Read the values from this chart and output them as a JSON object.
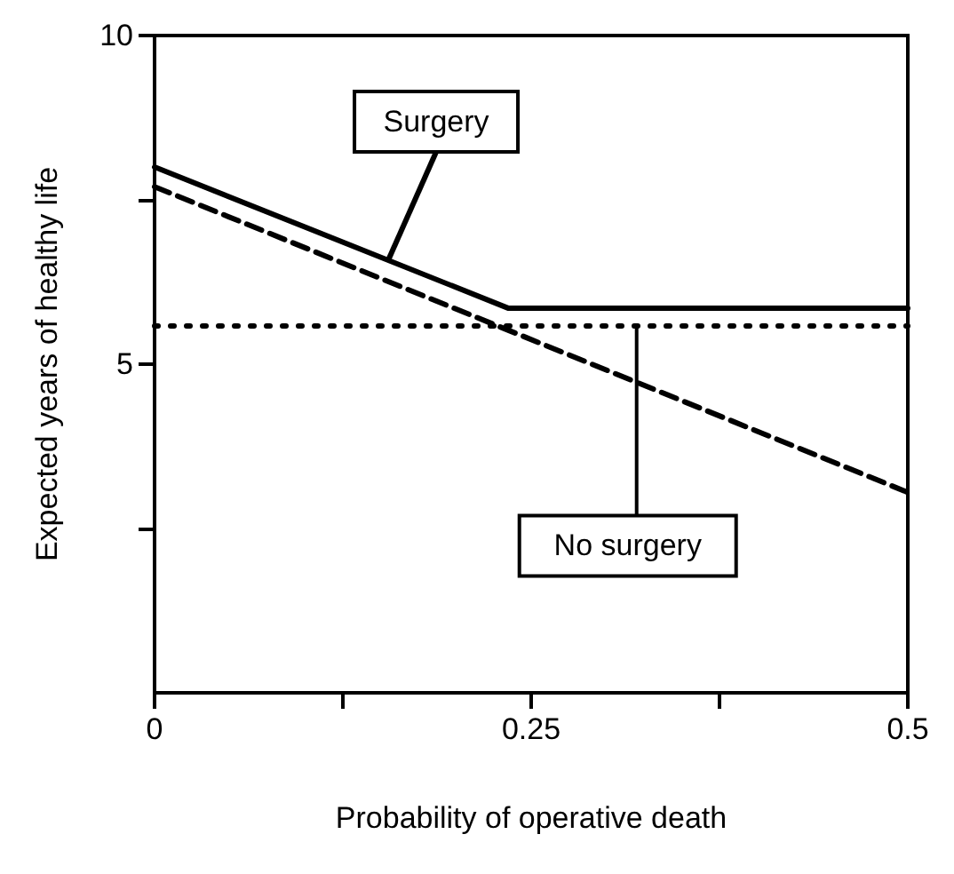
{
  "chart_data": {
    "type": "line",
    "xlabel": "Probability of operative death",
    "ylabel": "Expected years of healthy life",
    "xlim": [
      0,
      0.5
    ],
    "xticks": [
      0,
      {
        "value": 0.125,
        "label": null
      },
      0.25,
      {
        "value": 0.375,
        "label": null
      },
      0.5
    ],
    "ylim": [
      0,
      10
    ],
    "yticks": [
      {
        "value": 2.5,
        "label": null
      },
      5,
      {
        "value": 7.5,
        "label": null
      },
      10
    ],
    "series": [
      {
        "name": "Surgery",
        "color": "#000000",
        "x": [
          0,
          0.235,
          0.5
        ],
        "values": [
          8.0,
          5.85,
          5.85
        ],
        "line_style": "solid"
      },
      {
        "name": "No surgery",
        "color": "#000000",
        "x": [
          0,
          0.5
        ],
        "values": [
          7.7,
          3.05
        ],
        "line_style": "dashed"
      }
    ],
    "ref_lines": [
      {
        "axis": "y",
        "value": 5.6,
        "color": "#000000",
        "line_style": "dotted"
      }
    ],
    "grid": false,
    "legend": false,
    "marker": "none"
  }
}
